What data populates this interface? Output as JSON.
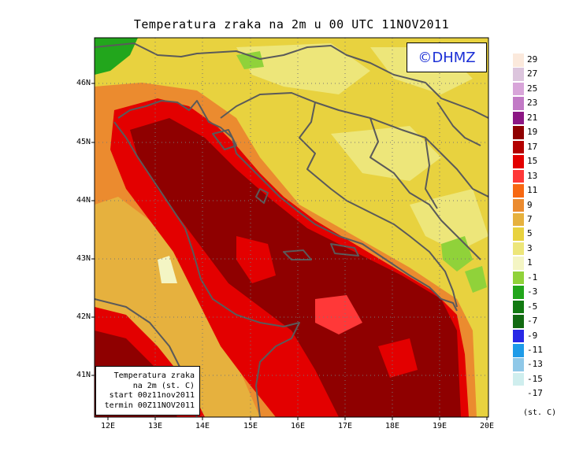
{
  "title": "Temperatura zraka na 2m u 00 UTC 11NOV2011",
  "logo": "©DHMZ",
  "info": [
    "Temperatura zraka",
    "na 2m (st. C)",
    "start 00z11nov2011",
    "termin 00Z11NOV2011"
  ],
  "lat_labels": [
    "46N",
    "45N",
    "44N",
    "43N",
    "42N",
    "41N"
  ],
  "lon_labels": [
    "12E",
    "13E",
    "14E",
    "15E",
    "16E",
    "17E",
    "18E",
    "19E",
    "20E"
  ],
  "legend": {
    "labels": [
      "29",
      "27",
      "25",
      "23",
      "21",
      "19",
      "17",
      "15",
      "13",
      "11",
      "9",
      "7",
      "5",
      "3",
      "1",
      "-1",
      "-3",
      "-5",
      "-7",
      "-9",
      "-11",
      "-13",
      "-15",
      "-17"
    ],
    "colors": [
      "#fbe9dc",
      "#dcc5dd",
      "#d8a5d9",
      "#c27ac6",
      "#8c1784",
      "#8f0000",
      "#b30000",
      "#e30000",
      "#ff3838",
      "#f76812",
      "#eb8b2f",
      "#e6b13e",
      "#e8d23f",
      "#ede67a",
      "#f4f5c4",
      "#90d23a",
      "#22a61c",
      "#127a12",
      "#126a12",
      "#2828e6",
      "#1e9be8",
      "#8fc8e8",
      "#cfeeee",
      "#ffffff"
    ],
    "unit": "(st. C)"
  },
  "colors": {
    "sea_dark": "#8f0000",
    "sea_red": "#e30000",
    "coast_orange": "#eb8b2f",
    "land_yellow": "#e8d23f",
    "land_pale": "#ede67a",
    "green": "#22a61c",
    "border_line": "#5a5a5a"
  }
}
